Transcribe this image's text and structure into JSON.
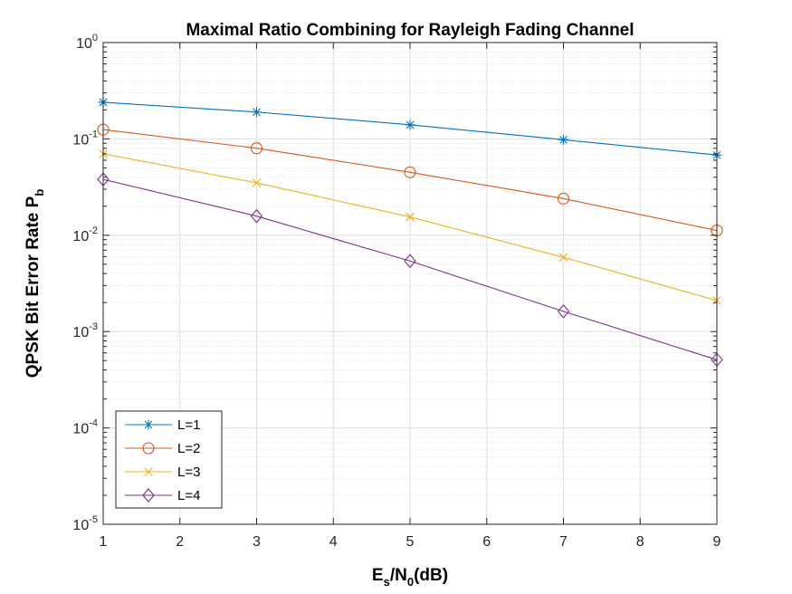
{
  "chart_data": {
    "type": "line",
    "title": "Maximal Ratio Combining for Rayleigh Fading Channel",
    "xlabel": {
      "main": "E",
      "sub1": "s",
      "mid": "/N",
      "sub2": "0",
      "tail": "(dB)"
    },
    "ylabel": {
      "main": "QPSK Bit Error Rate P",
      "sub": "b"
    },
    "xlim": [
      1,
      9
    ],
    "ylim": [
      1e-05,
      1
    ],
    "yscale": "log",
    "grid": true,
    "minor_grid": true,
    "legend_position": "bottom-left",
    "x_ticks": [
      "1",
      "2",
      "3",
      "4",
      "5",
      "6",
      "7",
      "8",
      "9"
    ],
    "y_ticks": [
      {
        "base": "10",
        "exp": "0"
      },
      {
        "base": "10",
        "exp": "-1"
      },
      {
        "base": "10",
        "exp": "-2"
      },
      {
        "base": "10",
        "exp": "-3"
      },
      {
        "base": "10",
        "exp": "-4"
      },
      {
        "base": "10",
        "exp": "-5"
      }
    ],
    "x": [
      1,
      3,
      5,
      7,
      9
    ],
    "series": [
      {
        "name": "L=1",
        "color": "#0072BD",
        "marker": "asterisk",
        "values": [
          0.24,
          0.19,
          0.14,
          0.098,
          0.068
        ]
      },
      {
        "name": "L=2",
        "color": "#D95319",
        "marker": "circle",
        "values": [
          0.125,
          0.08,
          0.045,
          0.024,
          0.0112
        ]
      },
      {
        "name": "L=3",
        "color": "#EDB120",
        "marker": "x",
        "values": [
          0.07,
          0.035,
          0.0155,
          0.0059,
          0.0021
        ]
      },
      {
        "name": "L=4",
        "color": "#7E2F8E",
        "marker": "diamond",
        "values": [
          0.038,
          0.0158,
          0.0054,
          0.00162,
          0.00051
        ]
      }
    ]
  }
}
